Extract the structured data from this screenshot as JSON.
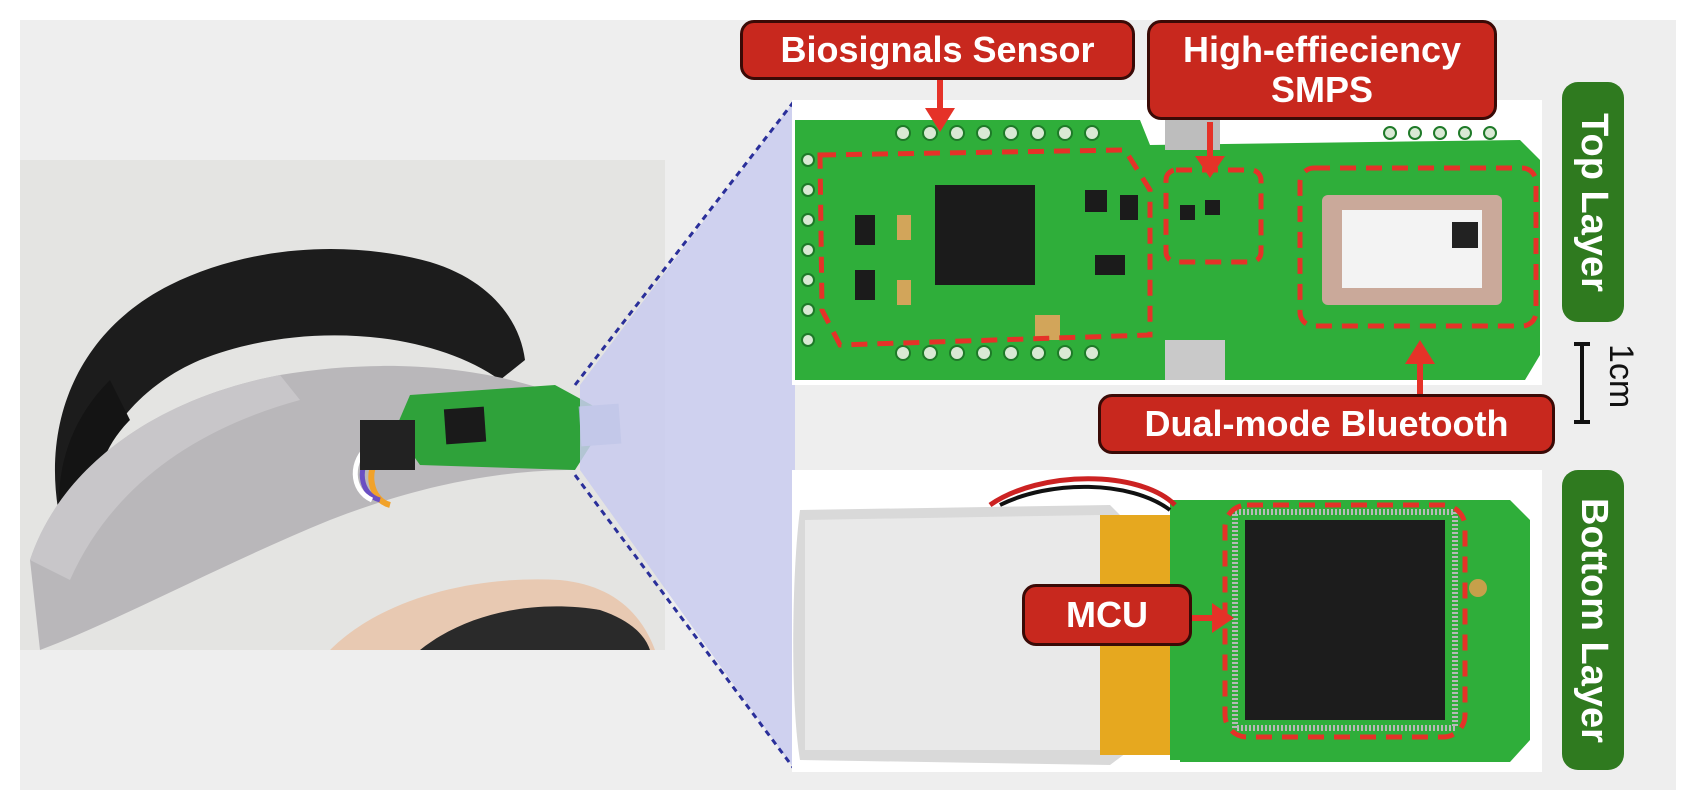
{
  "callouts": {
    "biosignals": "Biosignals Sensor",
    "smps_line1": "High-effieciency",
    "smps_line2": "SMPS",
    "bluetooth": "Dual-mode Bluetooth",
    "mcu": "MCU"
  },
  "tabs": {
    "top": "Top Layer",
    "bottom": "Bottom Layer"
  },
  "scale": "1cm",
  "colors": {
    "callout_red": "#c8281e",
    "tab_green": "#2f7a1f",
    "pcb_green": "#2fae3a",
    "dash_red": "#e53228",
    "projection_blue": "#c9cbee"
  }
}
